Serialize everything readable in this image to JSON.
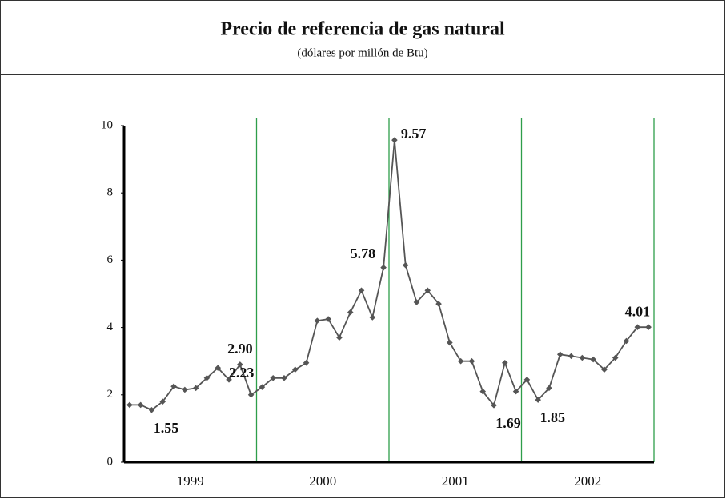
{
  "chart_data": {
    "type": "line",
    "title": "Precio de referencia de gas natural",
    "subtitle": "(dólares por millón de Btu)",
    "periods": [
      "1999",
      "2000",
      "2001",
      "2002"
    ],
    "points_per_period": 12,
    "series": [
      {
        "name": "Precio",
        "color": "#555555",
        "values": [
          1.7,
          1.7,
          1.55,
          1.8,
          2.25,
          2.15,
          2.2,
          2.5,
          2.8,
          2.45,
          2.9,
          2.0,
          2.23,
          2.5,
          2.5,
          2.75,
          2.95,
          4.2,
          4.25,
          3.7,
          4.45,
          5.1,
          4.3,
          5.78,
          9.57,
          5.85,
          4.75,
          5.1,
          4.7,
          3.55,
          3.0,
          3.0,
          2.1,
          1.69,
          2.95,
          2.1,
          2.45,
          1.85,
          2.2,
          3.2,
          3.15,
          3.1,
          3.05,
          2.75,
          3.1,
          3.6,
          4.01,
          4.01
        ],
        "value_labels": [
          null,
          null,
          "1.55",
          null,
          null,
          null,
          null,
          null,
          null,
          null,
          "2.90",
          null,
          "2.23",
          null,
          null,
          null,
          null,
          null,
          null,
          null,
          null,
          null,
          null,
          "5.78",
          "9.57",
          null,
          null,
          null,
          null,
          null,
          null,
          null,
          null,
          "1.69",
          null,
          null,
          null,
          "1.85",
          null,
          null,
          null,
          null,
          null,
          null,
          null,
          null,
          "4.01",
          null
        ]
      }
    ],
    "ylim": [
      0,
      10
    ],
    "yticks": [
      0,
      2,
      4,
      6,
      8,
      10
    ],
    "period_line_color": "#2e9e4a"
  }
}
